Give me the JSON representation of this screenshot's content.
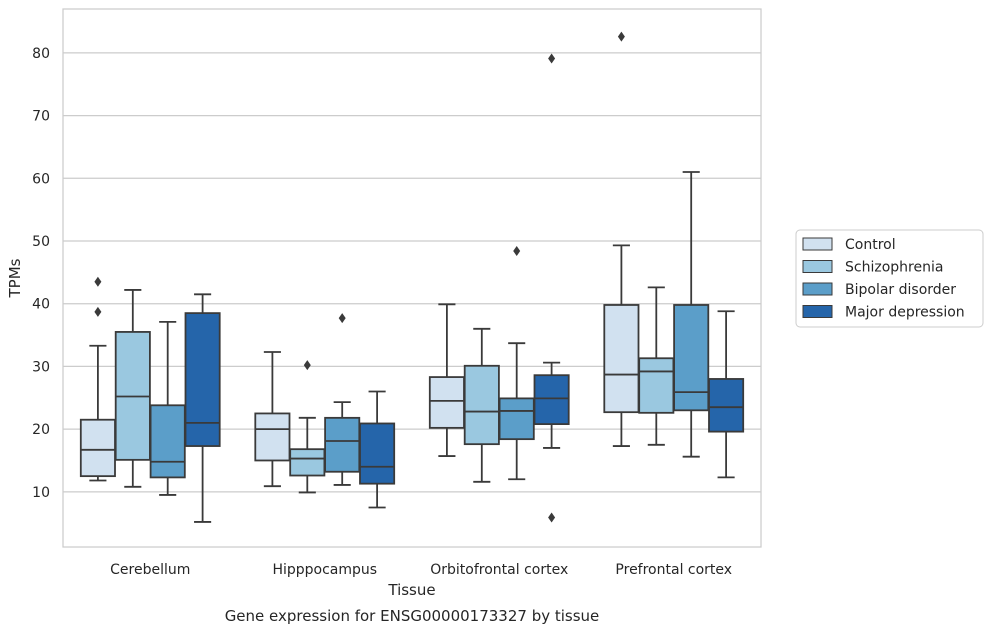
{
  "chart_data": {
    "type": "box",
    "caption": "Gene expression for ENSG00000173327 by tissue",
    "xlabel": "Tissue",
    "ylabel": "TPMs",
    "ylim": [
      1.2,
      87
    ],
    "yticks": [
      10,
      20,
      30,
      40,
      50,
      60,
      70,
      80
    ],
    "grid": "horizontal",
    "legend_position": "right",
    "categories": [
      "Cerebellum",
      "Hipppocampus",
      "Orbitofrontal cortex",
      "Prefrontal cortex"
    ],
    "series": [
      {
        "name": "Control",
        "color": "#d1e1f0",
        "boxes": [
          {
            "min": 11.8,
            "q1": 12.5,
            "median": 16.7,
            "q3": 21.5,
            "max": 33.3,
            "outliers": [
              38.7,
              43.5
            ]
          },
          {
            "min": 10.9,
            "q1": 15.0,
            "median": 20.0,
            "q3": 22.5,
            "max": 32.3,
            "outliers": []
          },
          {
            "min": 15.7,
            "q1": 20.2,
            "median": 24.5,
            "q3": 28.3,
            "max": 39.9,
            "outliers": []
          },
          {
            "min": 17.3,
            "q1": 22.7,
            "median": 28.7,
            "q3": 39.8,
            "max": 49.3,
            "outliers": [
              82.6
            ]
          }
        ]
      },
      {
        "name": "Schizophrenia",
        "color": "#9ac8e0",
        "boxes": [
          {
            "min": 10.8,
            "q1": 15.1,
            "median": 25.2,
            "q3": 35.5,
            "max": 42.2,
            "outliers": []
          },
          {
            "min": 9.9,
            "q1": 12.6,
            "median": 15.3,
            "q3": 16.8,
            "max": 21.8,
            "outliers": [
              30.2
            ]
          },
          {
            "min": 11.6,
            "q1": 17.6,
            "median": 22.8,
            "q3": 30.1,
            "max": 36.0,
            "outliers": []
          },
          {
            "min": 17.5,
            "q1": 22.6,
            "median": 29.2,
            "q3": 31.3,
            "max": 42.6,
            "outliers": []
          }
        ]
      },
      {
        "name": "Bipolar disorder",
        "color": "#5b9ec9",
        "boxes": [
          {
            "min": 9.5,
            "q1": 12.3,
            "median": 14.8,
            "q3": 23.8,
            "max": 37.1,
            "outliers": []
          },
          {
            "min": 11.1,
            "q1": 13.2,
            "median": 18.1,
            "q3": 21.8,
            "max": 24.3,
            "outliers": [
              37.7
            ]
          },
          {
            "min": 12.0,
            "q1": 18.4,
            "median": 22.9,
            "q3": 24.9,
            "max": 33.7,
            "outliers": [
              48.4
            ]
          },
          {
            "min": 15.6,
            "q1": 23.0,
            "median": 25.9,
            "q3": 39.8,
            "max": 61.0,
            "outliers": []
          }
        ]
      },
      {
        "name": "Major depression",
        "color": "#2565aa",
        "boxes": [
          {
            "min": 5.2,
            "q1": 17.3,
            "median": 21.0,
            "q3": 38.5,
            "max": 41.5,
            "outliers": []
          },
          {
            "min": 7.5,
            "q1": 11.3,
            "median": 14.0,
            "q3": 20.9,
            "max": 26.0,
            "outliers": []
          },
          {
            "min": 17.0,
            "q1": 20.8,
            "median": 24.9,
            "q3": 28.6,
            "max": 30.6,
            "outliers": [
              5.9,
              79.1
            ]
          },
          {
            "min": 12.3,
            "q1": 19.6,
            "median": 23.5,
            "q3": 28.0,
            "max": 38.8,
            "outliers": []
          }
        ]
      }
    ]
  }
}
